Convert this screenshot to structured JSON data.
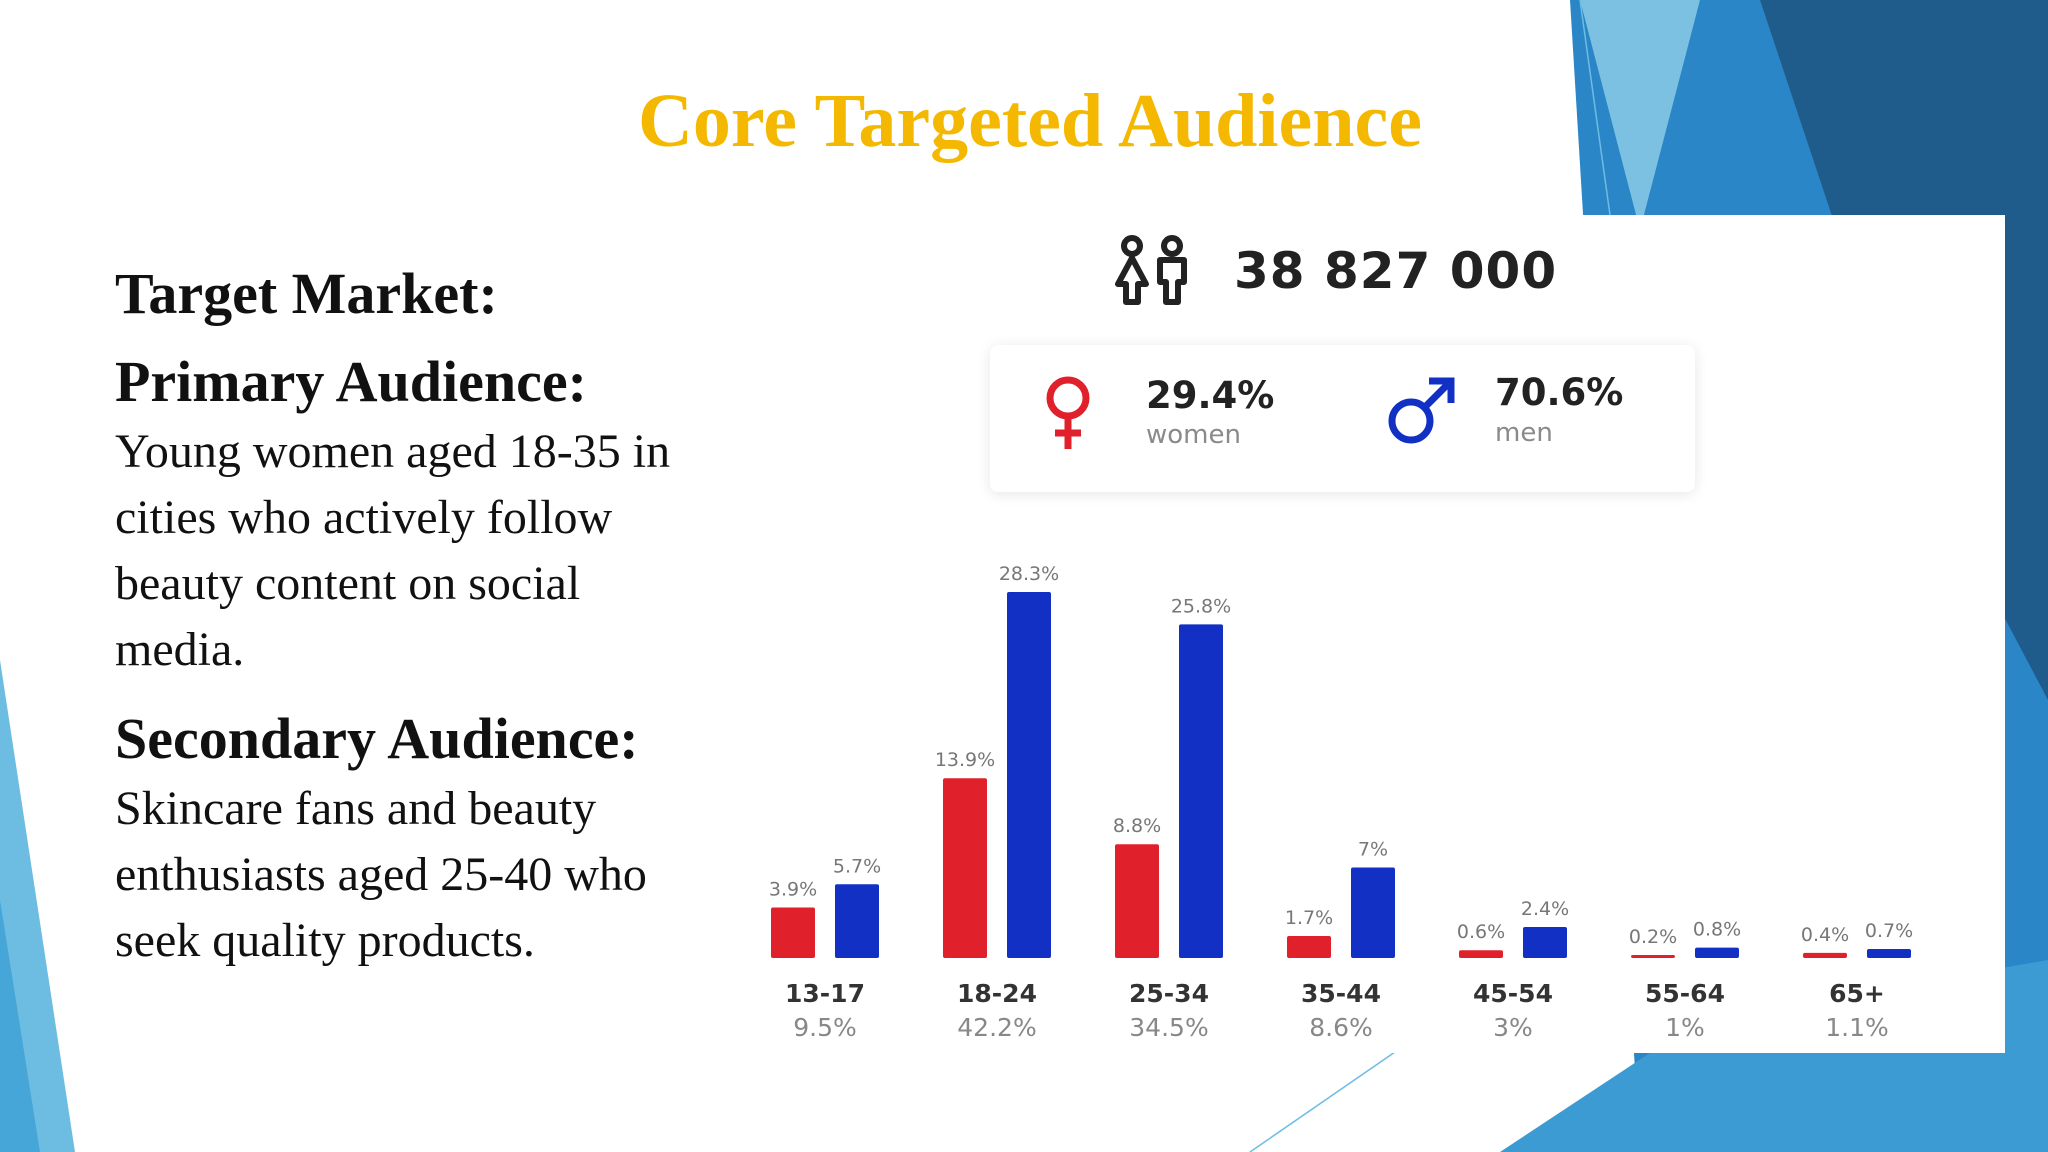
{
  "slide": {
    "title": "Core Targeted Audience",
    "target_heading": "Target Market:",
    "primary_heading": "Primary Audience:",
    "primary_text": "Young women aged 18-35 in cities who actively follow beauty content on social media.",
    "secondary_heading": "Secondary Audience:",
    "secondary_text": "Skincare fans and beauty enthusiasts aged 25-40 who seek quality products."
  },
  "audience": {
    "total": "38 827 000",
    "women_pct": "29.4%",
    "women_label": "women",
    "men_pct": "70.6%",
    "men_label": "men"
  },
  "colors": {
    "title": "#f5b800",
    "women": "#e0202a",
    "men": "#1230c4",
    "accent_blue": "#2a86c6"
  },
  "chart_data": {
    "type": "bar",
    "title": "",
    "categories": [
      "13-17",
      "18-24",
      "25-34",
      "35-44",
      "45-54",
      "55-64",
      "65+"
    ],
    "category_totals": [
      "9.5%",
      "42.2%",
      "34.5%",
      "8.6%",
      "3%",
      "1%",
      "1.1%"
    ],
    "series": [
      {
        "name": "women",
        "values": [
          3.9,
          13.9,
          8.8,
          1.7,
          0.6,
          0.2,
          0.4
        ],
        "labels": [
          "3.9%",
          "13.9%",
          "8.8%",
          "1.7%",
          "0.6%",
          "0.2%",
          "0.4%"
        ]
      },
      {
        "name": "men",
        "values": [
          5.7,
          28.3,
          25.8,
          7,
          2.4,
          0.8,
          0.7
        ],
        "labels": [
          "5.7%",
          "28.3%",
          "25.8%",
          "7%",
          "2.4%",
          "0.8%",
          "0.7%"
        ]
      }
    ],
    "xlabel": "",
    "ylabel": "",
    "ylim": [
      0,
      28.3
    ],
    "grid": false,
    "legend": "none"
  }
}
